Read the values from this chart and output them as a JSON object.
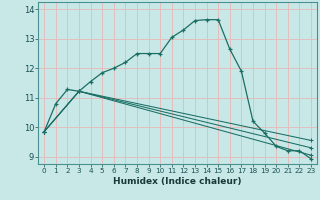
{
  "title": "",
  "xlabel": "Humidex (Indice chaleur)",
  "bg_color": "#c8e8e8",
  "grid_color": "#e8b8b8",
  "line_color": "#1a6e64",
  "xlim": [
    -0.5,
    23.5
  ],
  "ylim": [
    8.75,
    14.25
  ],
  "xtick_labels": [
    "0",
    "1",
    "2",
    "3",
    "4",
    "5",
    "6",
    "7",
    "8",
    "9",
    "10",
    "11",
    "12",
    "13",
    "14",
    "15",
    "16",
    "17",
    "18",
    "19",
    "20",
    "21",
    "22",
    "23"
  ],
  "yticks": [
    9,
    10,
    11,
    12,
    13,
    14
  ],
  "line1_x": [
    0,
    1,
    2,
    3,
    4,
    5,
    6,
    7,
    8,
    9,
    10,
    11,
    12,
    13,
    14,
    15,
    16,
    17,
    18,
    19,
    20,
    21,
    22,
    23
  ],
  "line1_y": [
    9.85,
    10.8,
    11.28,
    11.22,
    11.55,
    11.85,
    12.0,
    12.2,
    12.5,
    12.5,
    12.5,
    13.05,
    13.3,
    13.62,
    13.65,
    13.65,
    12.65,
    11.9,
    10.2,
    9.8,
    9.35,
    9.2,
    9.2,
    8.93
  ],
  "line2_x": [
    0,
    3,
    23
  ],
  "line2_y": [
    9.85,
    11.22,
    9.05
  ],
  "line3_x": [
    0,
    3,
    23
  ],
  "line3_y": [
    9.85,
    11.22,
    9.3
  ],
  "line4_x": [
    0,
    3,
    23
  ],
  "line4_y": [
    9.85,
    11.22,
    9.55
  ]
}
